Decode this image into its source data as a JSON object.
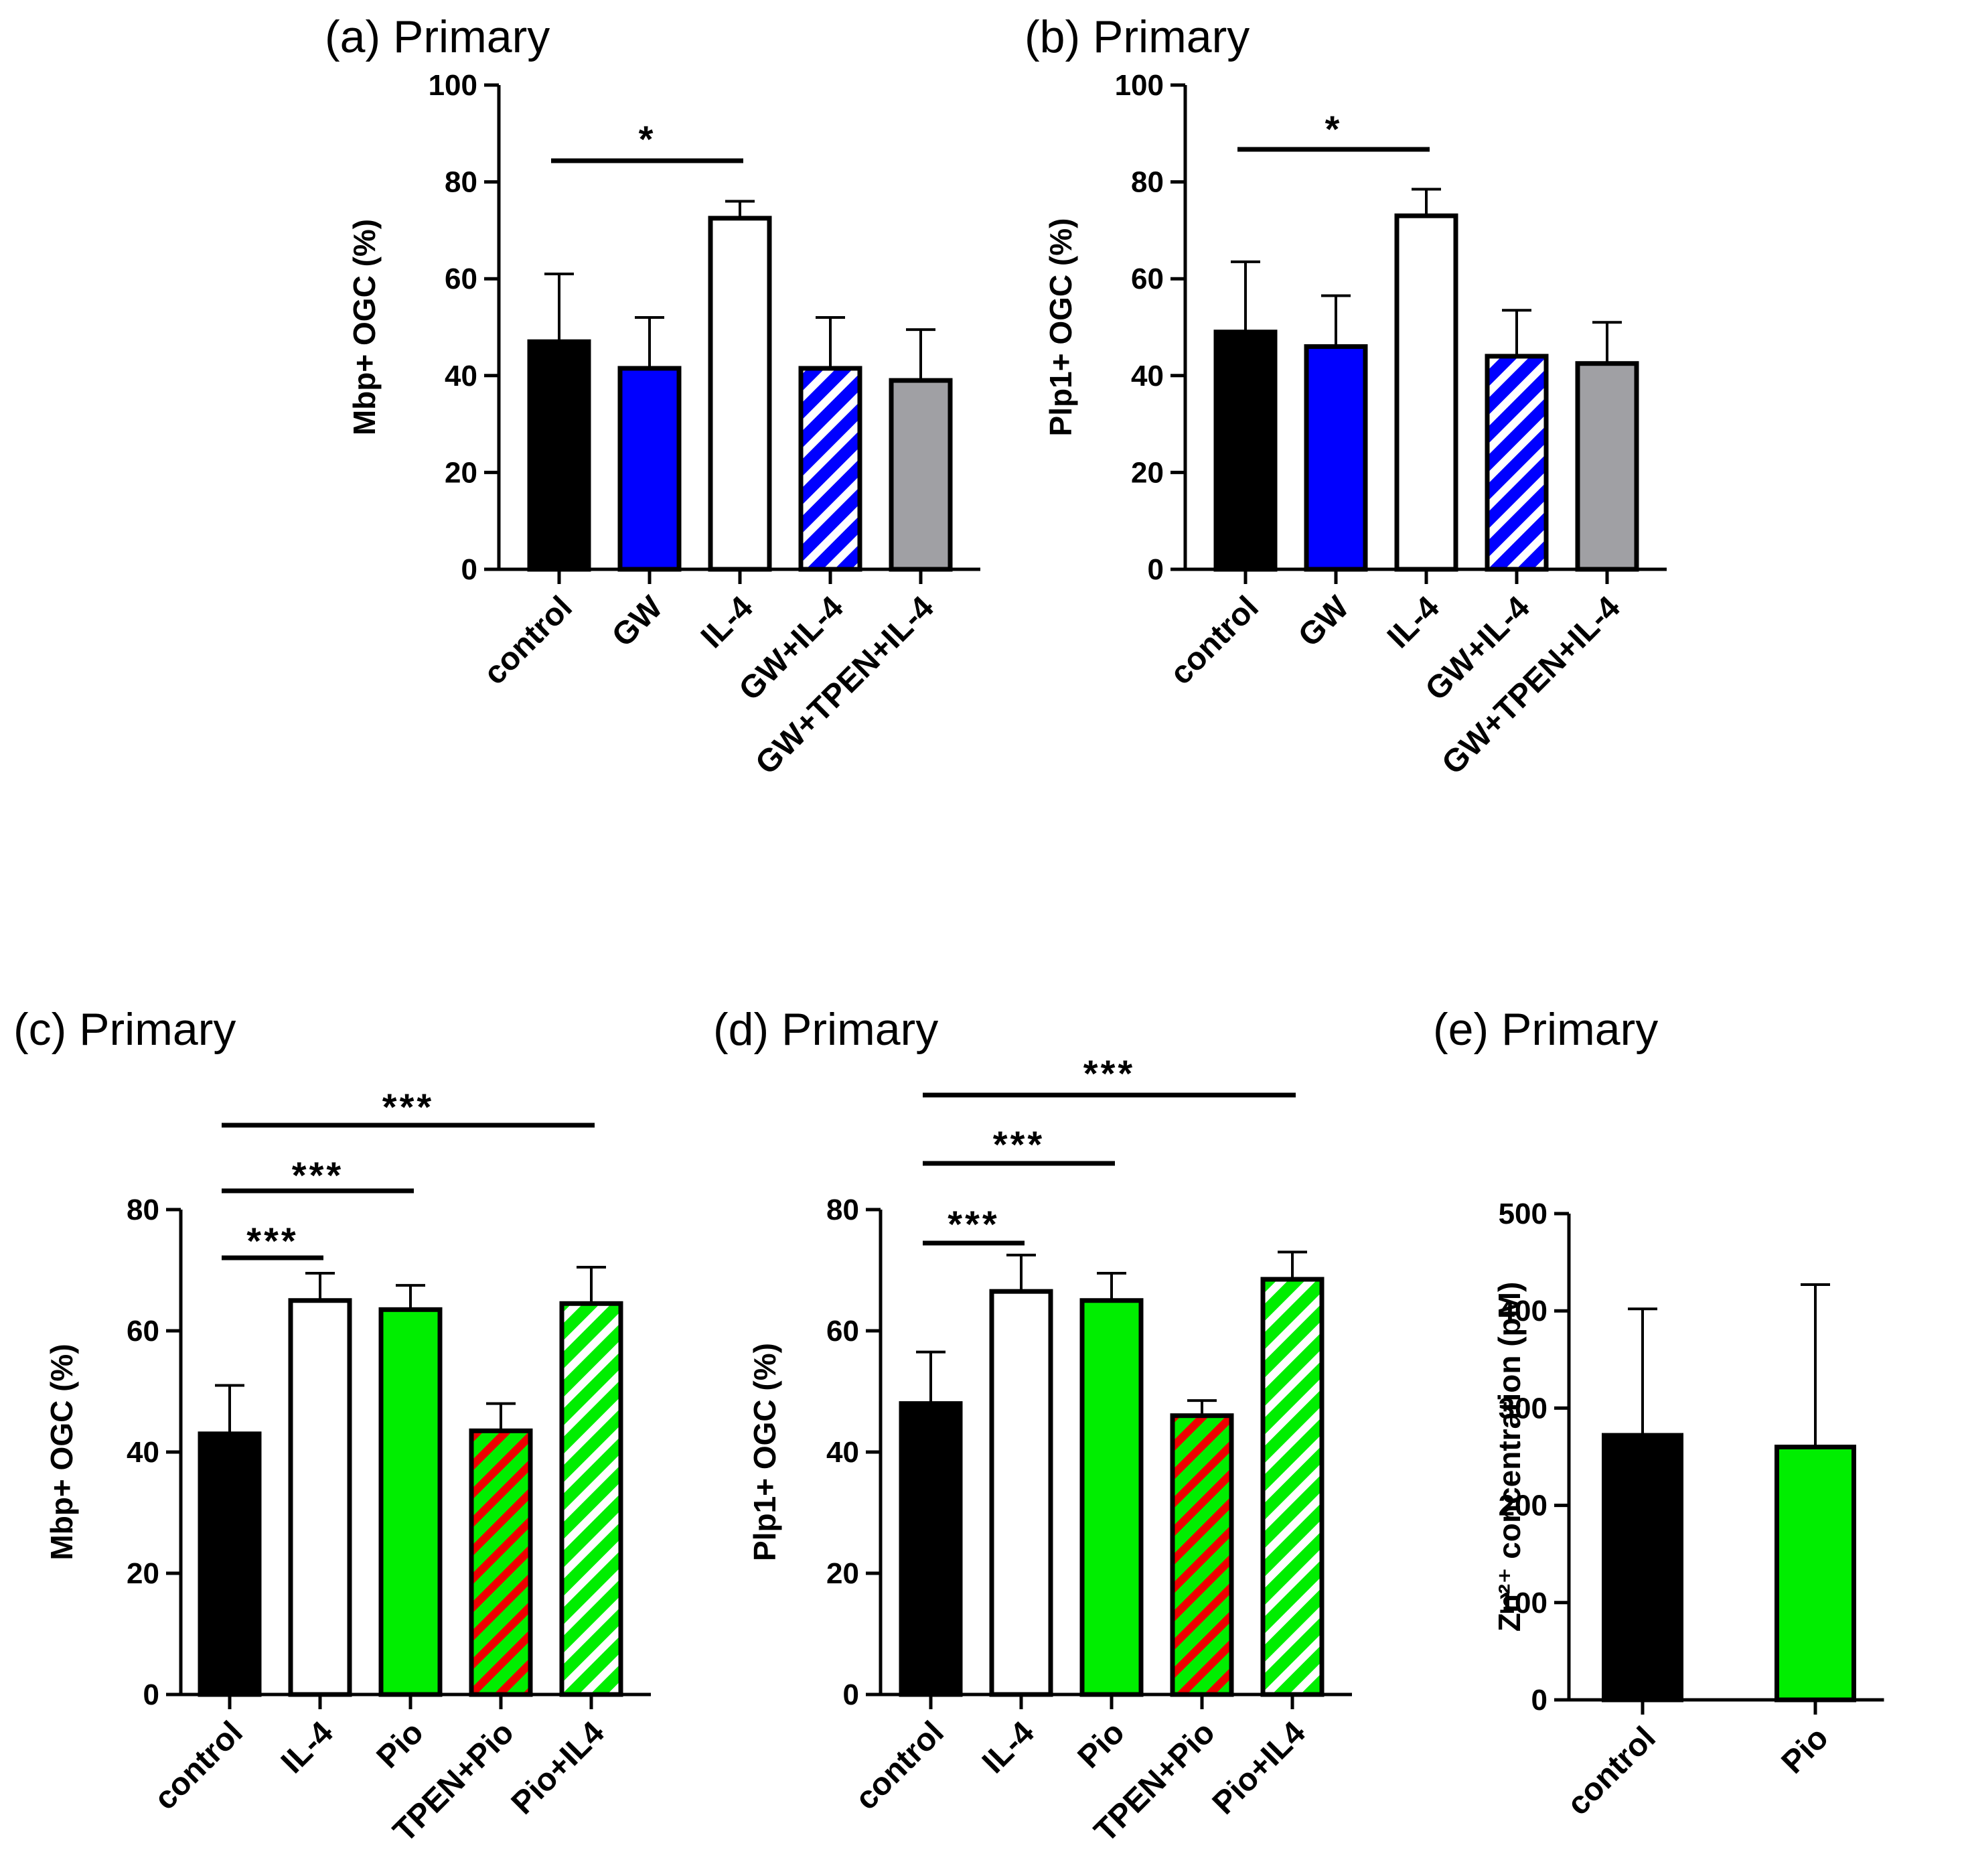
{
  "chart_data": [
    {
      "type": "bar",
      "title": "(a) Primary",
      "ylabel": "Mbp+ OGC (%)",
      "ylim": [
        0,
        100
      ],
      "yticks": [
        0,
        20,
        40,
        60,
        80,
        100
      ],
      "categories": [
        "control",
        "GW",
        "IL-4",
        "GW+IL-4",
        "GW+TPEN+IL-4"
      ],
      "values": [
        47,
        41.5,
        72.5,
        41.5,
        39
      ],
      "errors": [
        14,
        10.5,
        3.5,
        10.5,
        10.5
      ],
      "fills": [
        "solid",
        "solid",
        "solid",
        "hatch",
        "solid"
      ],
      "colors": [
        "#000000",
        "#0000ff",
        "#ffffff",
        "#0000ff",
        "#a0a0a4"
      ],
      "significance": [
        {
          "from": 0,
          "to": 2,
          "label": "*"
        }
      ]
    },
    {
      "type": "bar",
      "title": "(b) Primary",
      "ylabel": "Plp1+ OGC (%)",
      "ylim": [
        0,
        100
      ],
      "yticks": [
        0,
        20,
        40,
        60,
        80,
        100
      ],
      "categories": [
        "control",
        "GW",
        "IL-4",
        "GW+IL-4",
        "GW+TPEN+IL-4"
      ],
      "values": [
        49,
        46,
        73,
        44,
        42.5
      ],
      "errors": [
        14.5,
        10.5,
        5.5,
        9.5,
        8.5
      ],
      "fills": [
        "solid",
        "solid",
        "solid",
        "hatch",
        "solid"
      ],
      "colors": [
        "#000000",
        "#0000ff",
        "#ffffff",
        "#0000ff",
        "#a0a0a4"
      ],
      "significance": [
        {
          "from": 0,
          "to": 2,
          "label": "*"
        }
      ]
    },
    {
      "type": "bar",
      "title": "(c) Primary",
      "ylabel": "Mbp+ OGC (%)",
      "ylim": [
        0,
        80
      ],
      "yticks": [
        0,
        20,
        40,
        60,
        80
      ],
      "categories": [
        "control",
        "IL-4",
        "Pio",
        "TPEN+Pio",
        "Pio+IL4"
      ],
      "values": [
        43,
        65,
        63.5,
        43.5,
        64.5
      ],
      "errors": [
        8,
        4.5,
        4,
        4.5,
        6
      ],
      "fills": [
        "solid",
        "solid",
        "solid",
        "hatch-red",
        "hatch"
      ],
      "colors": [
        "#000000",
        "#ffffff",
        "#00ee00",
        "#00ee00",
        "#00ee00"
      ],
      "significance": [
        {
          "from": 0,
          "to": 1,
          "label": "***"
        },
        {
          "from": 0,
          "to": 2,
          "label": "***"
        },
        {
          "from": 0,
          "to": 4,
          "label": "***"
        }
      ]
    },
    {
      "type": "bar",
      "title": "(d) Primary",
      "ylabel": "Plp1+ OGC (%)",
      "ylim": [
        0,
        80
      ],
      "yticks": [
        0,
        20,
        40,
        60,
        80
      ],
      "categories": [
        "control",
        "IL-4",
        "Pio",
        "TPEN+Pio",
        "Pio+IL4"
      ],
      "values": [
        48,
        66.5,
        65,
        46,
        68.5
      ],
      "errors": [
        8.5,
        6,
        4.5,
        2.5,
        4.5
      ],
      "fills": [
        "solid",
        "solid",
        "solid",
        "hatch-red",
        "hatch"
      ],
      "colors": [
        "#000000",
        "#ffffff",
        "#00ee00",
        "#00ee00",
        "#00ee00"
      ],
      "significance": [
        {
          "from": 0,
          "to": 1,
          "label": "***"
        },
        {
          "from": 0,
          "to": 2,
          "label": "***"
        },
        {
          "from": 0,
          "to": 4,
          "label": "***"
        }
      ]
    },
    {
      "type": "bar",
      "title": "(e) Primary",
      "ylabel": "Zn²⁺ concentration (pM)",
      "ylim": [
        0,
        500
      ],
      "yticks": [
        0,
        100,
        200,
        300,
        400,
        500
      ],
      "categories": [
        "control",
        "Pio"
      ],
      "values": [
        272,
        260
      ],
      "errors": [
        130,
        167
      ],
      "fills": [
        "solid",
        "solid"
      ],
      "colors": [
        "#000000",
        "#00ee00"
      ],
      "significance": []
    }
  ]
}
